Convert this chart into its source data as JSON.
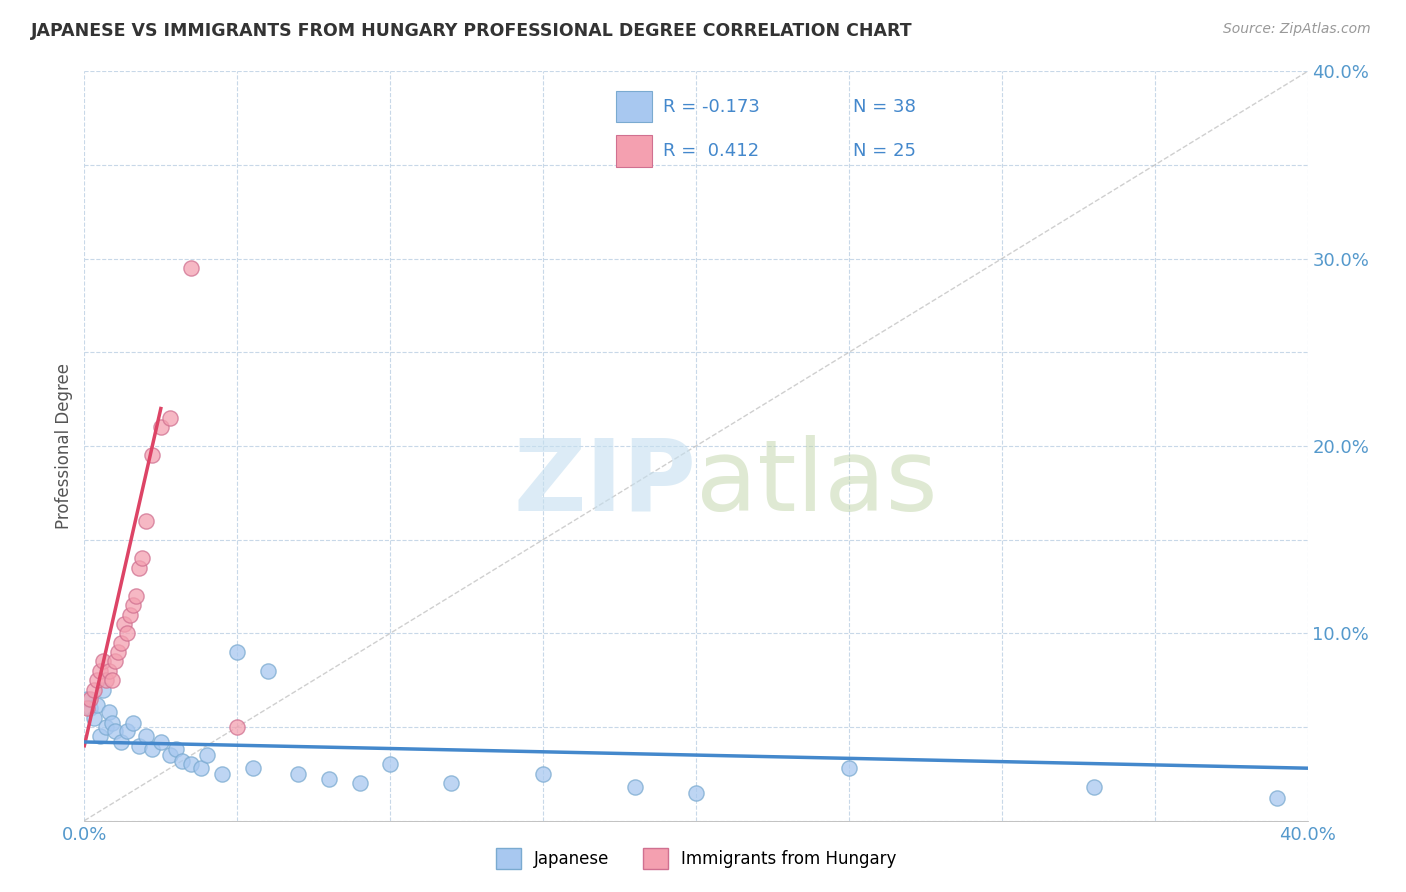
{
  "title": "JAPANESE VS IMMIGRANTS FROM HUNGARY PROFESSIONAL DEGREE CORRELATION CHART",
  "source": "Source: ZipAtlas.com",
  "ylabel": "Professional Degree",
  "xlim": [
    0.0,
    0.4
  ],
  "ylim": [
    0.0,
    0.4
  ],
  "xticks": [
    0.0,
    0.05,
    0.1,
    0.15,
    0.2,
    0.25,
    0.3,
    0.35,
    0.4
  ],
  "yticks": [
    0.0,
    0.05,
    0.1,
    0.15,
    0.2,
    0.25,
    0.3,
    0.35,
    0.4
  ],
  "color_japanese": "#a8c8f0",
  "color_hungary": "#f4a0b0",
  "color_line_japanese": "#4488cc",
  "color_line_hungary": "#dd4466",
  "background_color": "#ffffff",
  "grid_color": "#c8d8e8",
  "japanese_x": [
    0.001,
    0.002,
    0.003,
    0.004,
    0.005,
    0.006,
    0.007,
    0.008,
    0.009,
    0.01,
    0.012,
    0.014,
    0.016,
    0.018,
    0.02,
    0.022,
    0.025,
    0.028,
    0.03,
    0.032,
    0.035,
    0.038,
    0.04,
    0.045,
    0.05,
    0.055,
    0.06,
    0.07,
    0.08,
    0.09,
    0.1,
    0.12,
    0.15,
    0.18,
    0.2,
    0.25,
    0.33,
    0.39
  ],
  "japanese_y": [
    0.065,
    0.06,
    0.055,
    0.062,
    0.045,
    0.07,
    0.05,
    0.058,
    0.052,
    0.048,
    0.042,
    0.048,
    0.052,
    0.04,
    0.045,
    0.038,
    0.042,
    0.035,
    0.038,
    0.032,
    0.03,
    0.028,
    0.035,
    0.025,
    0.09,
    0.028,
    0.08,
    0.025,
    0.022,
    0.02,
    0.03,
    0.02,
    0.025,
    0.018,
    0.015,
    0.028,
    0.018,
    0.012
  ],
  "hungary_x": [
    0.001,
    0.002,
    0.003,
    0.004,
    0.005,
    0.006,
    0.007,
    0.008,
    0.009,
    0.01,
    0.011,
    0.012,
    0.013,
    0.014,
    0.015,
    0.016,
    0.017,
    0.018,
    0.019,
    0.02,
    0.022,
    0.025,
    0.028,
    0.035,
    0.05
  ],
  "hungary_y": [
    0.06,
    0.065,
    0.07,
    0.075,
    0.08,
    0.085,
    0.075,
    0.08,
    0.075,
    0.085,
    0.09,
    0.095,
    0.105,
    0.1,
    0.11,
    0.115,
    0.12,
    0.135,
    0.14,
    0.16,
    0.195,
    0.21,
    0.215,
    0.295,
    0.05
  ],
  "hun_line_x": [
    0.0,
    0.025
  ],
  "hun_line_y": [
    0.04,
    0.22
  ],
  "jap_line_x": [
    0.0,
    0.4
  ],
  "jap_line_y": [
    0.042,
    0.028
  ]
}
